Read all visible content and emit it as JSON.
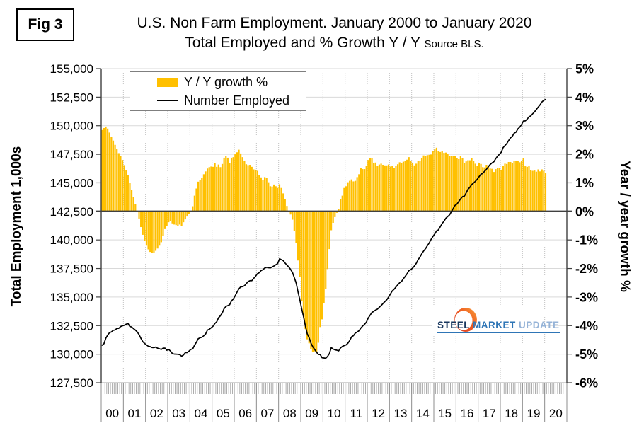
{
  "figure": {
    "label": "Fig 3"
  },
  "title": {
    "line1": "U.S. Non Farm Employment. January 2000 to January 2020",
    "line2": "Total Employed and % Growth Y / Y",
    "source": "Source BLS."
  },
  "logo": {
    "steel": "STEEL",
    "market": "MARKET",
    "update": "UPDATE"
  },
  "chart_data": {
    "type": "combo",
    "x_freq": "monthly",
    "x_start": "2000-01",
    "x_end": "2020-01",
    "x_year_labels": [
      "00",
      "01",
      "02",
      "03",
      "04",
      "05",
      "06",
      "07",
      "08",
      "09",
      "10",
      "11",
      "12",
      "13",
      "14",
      "15",
      "16",
      "17",
      "18",
      "19",
      "20"
    ],
    "grid": {
      "horizontal": "solid",
      "vertical": "dotted-yearly"
    },
    "zero_line": true,
    "legend_position": "top-left-inside",
    "axes": {
      "left": {
        "label": "Total Employment 1,000s",
        "min": 127500,
        "max": 155000,
        "step": 2500,
        "tick_labels": [
          "155,000",
          "152,500",
          "150,000",
          "147,500",
          "145,000",
          "142,500",
          "140,000",
          "137,500",
          "135,000",
          "132,500",
          "130,000",
          "127,500"
        ]
      },
      "right": {
        "label": "Year / year growth %",
        "min": -6,
        "max": 5,
        "step": 1,
        "tick_labels": [
          "5%",
          "4%",
          "3%",
          "2%",
          "1%",
          "0%",
          "-1%",
          "-2%",
          "-3%",
          "-4%",
          "-5%",
          "-6%"
        ]
      }
    },
    "series": [
      {
        "name": "Y / Y growth %",
        "type": "bar",
        "axis": "right",
        "color": "#FFC000",
        "values": [
          2.85,
          2.92,
          2.97,
          2.9,
          2.76,
          2.6,
          2.48,
          2.33,
          2.18,
          2.04,
          1.93,
          1.8,
          1.62,
          1.45,
          1.28,
          1.0,
          0.76,
          0.5,
          0.25,
          0.0,
          -0.25,
          -0.55,
          -0.82,
          -1.02,
          -1.2,
          -1.33,
          -1.42,
          -1.46,
          -1.44,
          -1.38,
          -1.3,
          -1.2,
          -1.08,
          -0.85,
          -0.62,
          -0.5,
          -0.38,
          -0.35,
          -0.42,
          -0.46,
          -0.48,
          -0.5,
          -0.46,
          -0.5,
          -0.38,
          -0.28,
          -0.18,
          -0.08,
          0.02,
          0.18,
          0.55,
          0.8,
          1.04,
          1.1,
          1.17,
          1.3,
          1.4,
          1.5,
          1.55,
          1.57,
          1.56,
          1.7,
          1.56,
          1.64,
          1.55,
          1.66,
          1.88,
          1.95,
          1.88,
          1.7,
          1.88,
          1.9,
          2.0,
          2.07,
          2.16,
          2.03,
          1.9,
          1.78,
          1.65,
          1.62,
          1.63,
          1.56,
          1.47,
          1.46,
          1.42,
          1.26,
          1.19,
          1.11,
          1.2,
          1.18,
          1.02,
          0.88,
          0.87,
          0.94,
          0.88,
          0.82,
          0.95,
          0.82,
          0.63,
          0.42,
          0.19,
          0.01,
          -0.11,
          -0.29,
          -0.68,
          -1.1,
          -1.72,
          -2.3,
          -3.15,
          -3.62,
          -4.12,
          -4.48,
          -4.62,
          -4.82,
          -4.92,
          -4.9,
          -4.95,
          -4.6,
          -4.05,
          -3.78,
          -3.22,
          -2.72,
          -2.02,
          -1.32,
          -0.66,
          -0.4,
          -0.2,
          -0.05,
          0.08,
          0.43,
          0.55,
          0.82,
          0.88,
          1.02,
          1.07,
          1.12,
          1.05,
          1.07,
          1.2,
          1.3,
          1.53,
          1.48,
          1.48,
          1.58,
          1.8,
          1.86,
          1.87,
          1.7,
          1.71,
          1.6,
          1.64,
          1.67,
          1.63,
          1.61,
          1.61,
          1.64,
          1.57,
          1.6,
          1.52,
          1.59,
          1.65,
          1.72,
          1.68,
          1.74,
          1.76,
          1.81,
          1.9,
          1.78,
          1.69,
          1.61,
          1.67,
          1.76,
          1.78,
          1.86,
          1.96,
          1.93,
          1.97,
          1.98,
          1.99,
          2.12,
          2.17,
          2.23,
          2.12,
          2.08,
          2.12,
          2.05,
          2.06,
          2.02,
          1.93,
          1.95,
          1.94,
          1.95,
          1.86,
          1.83,
          1.93,
          1.87,
          1.69,
          1.75,
          1.79,
          1.79,
          1.87,
          1.76,
          1.67,
          1.59,
          1.68,
          1.66,
          1.55,
          1.54,
          1.63,
          1.59,
          1.5,
          1.49,
          1.38,
          1.48,
          1.52,
          1.51,
          1.46,
          1.6,
          1.67,
          1.66,
          1.73,
          1.73,
          1.69,
          1.77,
          1.76,
          1.77,
          1.72,
          1.76,
          1.86,
          1.58,
          1.56,
          1.58,
          1.45,
          1.42,
          1.43,
          1.39,
          1.47,
          1.4,
          1.47,
          1.42,
          1.35
        ]
      },
      {
        "name": "Number Employed",
        "type": "line",
        "axis": "left",
        "color": "#000000",
        "values": [
          130780,
          130920,
          131390,
          131670,
          131890,
          131940,
          132090,
          132120,
          132250,
          132260,
          132420,
          132480,
          132530,
          132620,
          132690,
          132420,
          132380,
          132230,
          132110,
          131950,
          131710,
          131390,
          131090,
          130940,
          130810,
          130690,
          130660,
          130580,
          130570,
          130620,
          130520,
          130470,
          130410,
          130530,
          130530,
          130340,
          130420,
          130270,
          130060,
          130010,
          130000,
          129990,
          129960,
          129820,
          129930,
          130130,
          130140,
          130260,
          130420,
          130460,
          130790,
          131040,
          131350,
          131430,
          131480,
          131610,
          131770,
          132110,
          132180,
          132310,
          132450,
          132690,
          132830,
          133190,
          133360,
          133610,
          133980,
          134180,
          134250,
          134330,
          134670,
          134830,
          135110,
          135430,
          135710,
          135890,
          135910,
          135990,
          136180,
          136350,
          136440,
          136430,
          136630,
          136800,
          137040,
          137130,
          137320,
          137400,
          137540,
          137610,
          137570,
          137550,
          137630,
          137720,
          137830,
          137930,
          138350,
          138270,
          138190,
          137980,
          137800,
          137630,
          137420,
          137150,
          136700,
          136220,
          135460,
          134760,
          133980,
          133280,
          132480,
          131790,
          131440,
          130970,
          130640,
          130420,
          130180,
          129980,
          129970,
          129690,
          129670,
          129640,
          129810,
          130060,
          130580,
          130450,
          130380,
          130350,
          130290,
          130540,
          130680,
          130750,
          130810,
          130960,
          131200,
          131520,
          131620,
          131840,
          131940,
          132050,
          132290,
          132470,
          132610,
          132810,
          133170,
          133400,
          133650,
          133750,
          133870,
          133950,
          134110,
          134260,
          134440,
          134600,
          134750,
          134990,
          135260,
          135540,
          135680,
          135880,
          136080,
          136250,
          136360,
          136600,
          136800,
          137030,
          137310,
          137390,
          137540,
          137720,
          137950,
          138270,
          138500,
          138790,
          139030,
          139240,
          139500,
          139740,
          140040,
          140300,
          140520,
          140790,
          140880,
          141150,
          141440,
          141640,
          141900,
          142050,
          142190,
          142470,
          142750,
          143030,
          143130,
          143370,
          143600,
          143790,
          143830,
          144120,
          144440,
          144600,
          144850,
          144980,
          145140,
          145310,
          145540,
          145750,
          145830,
          146010,
          146180,
          146410,
          146600,
          146750,
          146850,
          147120,
          147340,
          147500,
          147670,
          148080,
          148260,
          148440,
          148710,
          148940,
          149080,
          149350,
          149440,
          149720,
          149870,
          150100,
          150410,
          150420,
          150570,
          150780,
          150870,
          151050,
          151210,
          151420,
          151630,
          151820,
          152080,
          152230,
          152300
        ]
      }
    ]
  }
}
